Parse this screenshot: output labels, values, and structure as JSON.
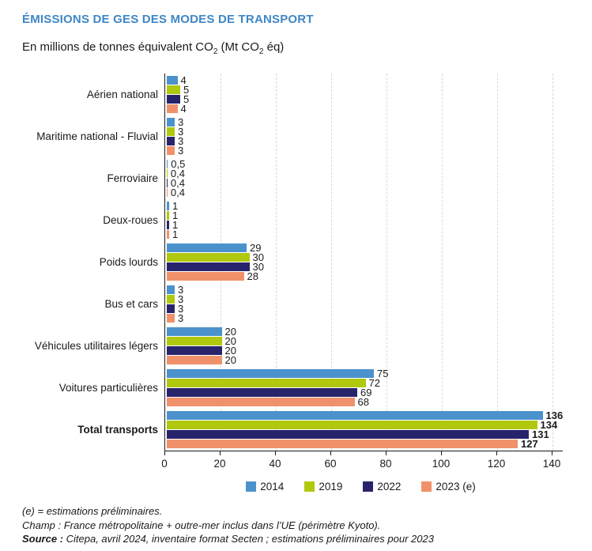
{
  "header": {
    "title": "ÉMISSIONS DE GES DES MODES DE TRANSPORT",
    "subtitle_parts": {
      "p1": "En millions de tonnes équivalent CO",
      "s1": "2",
      "p2": " (Mt CO",
      "s2": "2",
      "p3": " éq)"
    }
  },
  "colors": {
    "title": "#3e86c6",
    "axis": "#1a1a1a",
    "grid": "#d9d9d9",
    "text": "#1a1a1a"
  },
  "chart_data": {
    "type": "bar",
    "orientation": "horizontal",
    "title": "ÉMISSIONS DE GES DES MODES DE TRANSPORT",
    "subtitle": "En millions de tonnes équivalent CO2 (Mt CO2 éq)",
    "categories": [
      "Aérien national",
      "Maritime national - Fluvial",
      "Ferroviaire",
      "Deux-roues",
      "Poids lourds",
      "Bus et cars",
      "Véhicules utilitaires légers",
      "Voitures particulières",
      "Total transports"
    ],
    "bold_category": "Total transports",
    "series": [
      {
        "name": "2014",
        "color": "#4b92cc",
        "values": [
          4,
          3,
          0.5,
          1,
          29,
          3,
          20,
          75,
          136
        ],
        "labels": [
          "4",
          "3",
          "0,5",
          "1",
          "29",
          "3",
          "20",
          "75",
          "136"
        ]
      },
      {
        "name": "2019",
        "color": "#b0c80e",
        "values": [
          5,
          3,
          0.4,
          1,
          30,
          3,
          20,
          72,
          134
        ],
        "labels": [
          "5",
          "3",
          "0,4",
          "1",
          "30",
          "3",
          "20",
          "72",
          "134"
        ]
      },
      {
        "name": "2022",
        "color": "#28246b",
        "values": [
          5,
          3,
          0.4,
          1,
          30,
          3,
          20,
          69,
          131
        ],
        "labels": [
          "5",
          "3",
          "0,4",
          "1",
          "30",
          "3",
          "20",
          "69",
          "131"
        ]
      },
      {
        "name": "2023 (e)",
        "color": "#f0916b",
        "values": [
          4,
          3,
          0.4,
          1,
          28,
          3,
          20,
          68,
          127
        ],
        "labels": [
          "4",
          "3",
          "0,4",
          "1",
          "28",
          "3",
          "20",
          "68",
          "127"
        ]
      }
    ],
    "xlim": [
      0,
      140
    ],
    "xticks": [
      0,
      20,
      40,
      60,
      80,
      100,
      120,
      140
    ],
    "grid": "vertical-dashed",
    "legend_position": "bottom-center"
  },
  "footer": {
    "line1": "(e) = estimations préliminaires.",
    "line2": "Champ : France métropolitaine + outre-mer inclus dans l’UE (périmètre Kyoto).",
    "line3_bold": "Source :",
    "line3_rest": " Citepa, avril 2024, inventaire format Secten ; estimations préliminaires pour 2023"
  }
}
